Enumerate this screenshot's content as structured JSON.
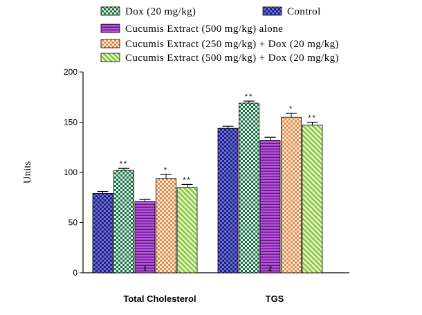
{
  "chart_data": {
    "type": "bar",
    "title": "",
    "xlabel": "",
    "ylabel": "Units",
    "ylim": [
      0,
      200
    ],
    "yticks": [
      0,
      50,
      100,
      150,
      200
    ],
    "grid": false,
    "legend_position": "top",
    "categories": [
      "Total Cholesterol",
      "TGS"
    ],
    "category_markers": [
      "1",
      "2"
    ],
    "series": [
      {
        "name": "Control",
        "pattern": "checker-dark",
        "color": "#3a3ab0",
        "values": [
          79,
          144
        ],
        "errors": [
          2,
          2
        ],
        "significance": [
          "",
          ""
        ]
      },
      {
        "name": "Dox (20 mg/kg)",
        "pattern": "checker-green",
        "color": "#2e7d5b",
        "values": [
          102,
          169
        ],
        "errors": [
          2,
          2
        ],
        "significance": [
          "**",
          "**"
        ]
      },
      {
        "name": "Cucumis Extract (500 mg/kg) alone",
        "pattern": "horizontal-stripes",
        "color": "#a040c8",
        "values": [
          71,
          132
        ],
        "errors": [
          2,
          3
        ],
        "significance": [
          "",
          ""
        ]
      },
      {
        "name": "Cucumis Extract (250 mg/kg) + Dox (20 mg/kg)",
        "pattern": "checker-orange",
        "color": "#e89a5a",
        "values": [
          94,
          155
        ],
        "errors": [
          4,
          4
        ],
        "significance": [
          "*",
          "*"
        ]
      },
      {
        "name": "Cucumis Extract (500 mg/kg) + Dox  (20 mg/kg)",
        "pattern": "diagonal-green",
        "color": "#8cc850",
        "values": [
          85,
          147
        ],
        "errors": [
          3,
          3
        ],
        "significance": [
          "**",
          "**"
        ]
      }
    ]
  }
}
